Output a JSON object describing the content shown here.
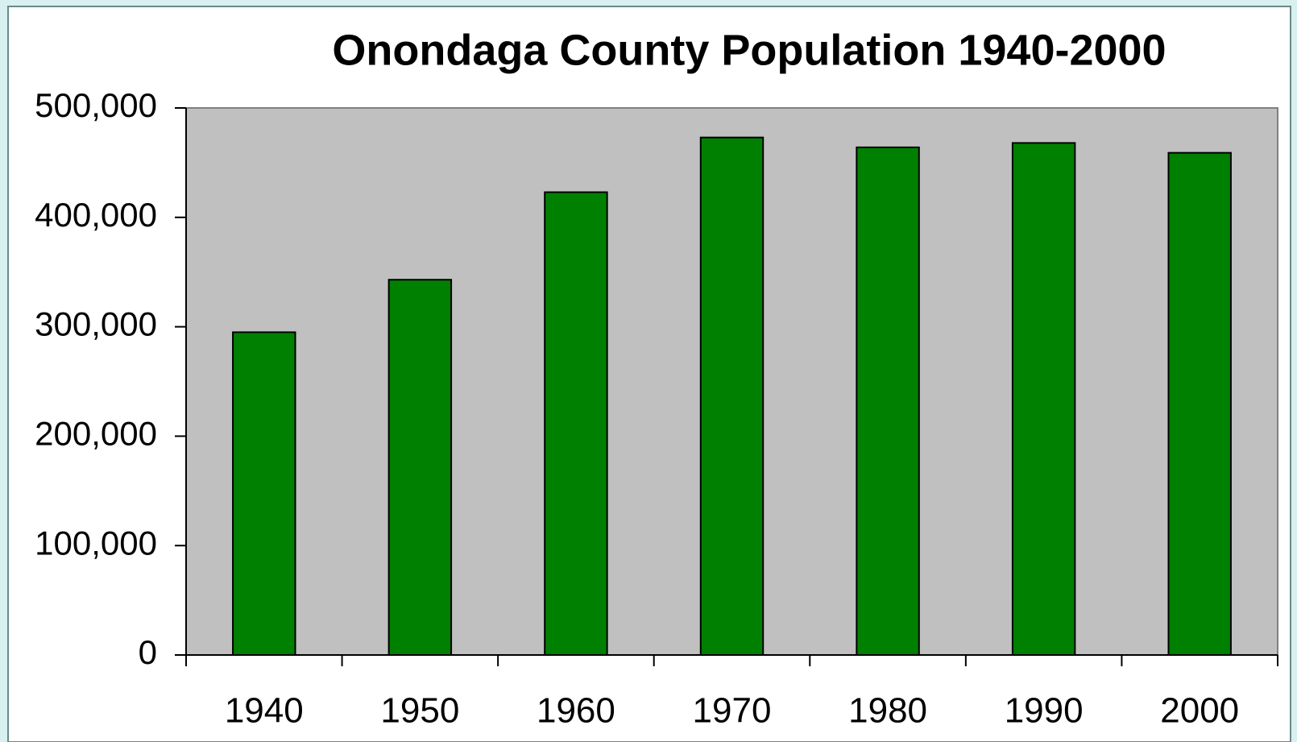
{
  "chart_data": {
    "type": "bar",
    "title": "Onondaga County Population 1940-2000",
    "categories": [
      "1940",
      "1950",
      "1960",
      "1970",
      "1980",
      "1990",
      "2000"
    ],
    "values": [
      295000,
      343000,
      423000,
      473000,
      464000,
      468000,
      459000
    ],
    "color": "#008000",
    "ylim": [
      0,
      500000
    ],
    "yticks": [
      0,
      {
        "value": 100000,
        "label": "100,000"
      },
      {
        "value": 200000,
        "label": "200,000"
      },
      {
        "value": 300000,
        "label": "300,000"
      },
      {
        "value": 400000,
        "label": "400,000"
      },
      {
        "value": 500000,
        "label": "500,000"
      }
    ],
    "grid": false
  }
}
